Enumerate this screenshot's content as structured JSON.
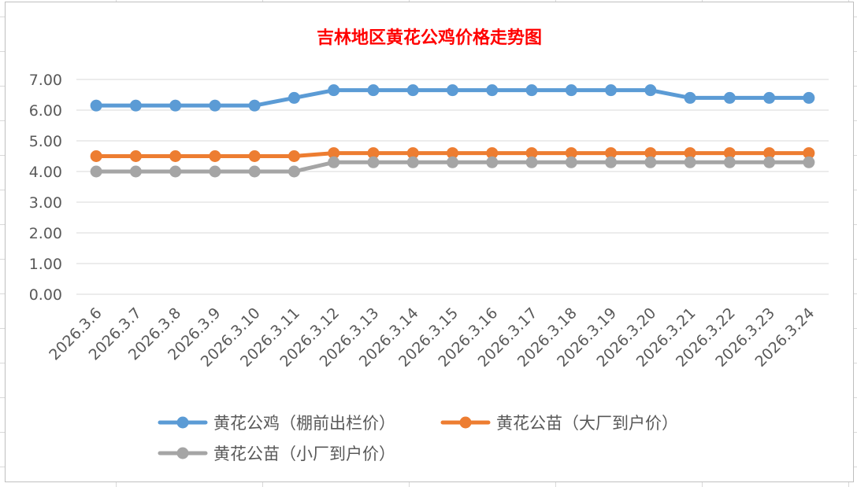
{
  "chart_data": {
    "type": "line",
    "title": "吉林地区黄花公鸡价格走势图",
    "xlabel": "",
    "ylabel": "",
    "ylim": [
      0,
      7
    ],
    "y_ticks": [
      "0.00",
      "1.00",
      "2.00",
      "3.00",
      "4.00",
      "5.00",
      "6.00",
      "7.00"
    ],
    "grid": true,
    "legend_position": "bottom",
    "categories": [
      "2026.3.6",
      "2026.3.7",
      "2026.3.8",
      "2026.3.9",
      "2026.3.10",
      "2026.3.11",
      "2026.3.12",
      "2026.3.13",
      "2026.3.14",
      "2026.3.15",
      "2026.3.16",
      "2026.3.17",
      "2026.3.18",
      "2026.3.19",
      "2026.3.20",
      "2026.3.21",
      "2026.3.22",
      "2026.3.23",
      "2026.3.24"
    ],
    "series": [
      {
        "name": "黄花公鸡（棚前出栏价）",
        "color": "#5b9bd5",
        "values": [
          6.15,
          6.15,
          6.15,
          6.15,
          6.15,
          6.4,
          6.65,
          6.65,
          6.65,
          6.65,
          6.65,
          6.65,
          6.65,
          6.65,
          6.65,
          6.4,
          6.4,
          6.4,
          6.4
        ]
      },
      {
        "name": "黄花公苗（大厂到户价）",
        "color": "#ed7d31",
        "values": [
          4.5,
          4.5,
          4.5,
          4.5,
          4.5,
          4.5,
          4.6,
          4.6,
          4.6,
          4.6,
          4.6,
          4.6,
          4.6,
          4.6,
          4.6,
          4.6,
          4.6,
          4.6,
          4.6
        ]
      },
      {
        "name": "黄花公苗（小厂到户价）",
        "color": "#a5a5a5",
        "values": [
          4.0,
          4.0,
          4.0,
          4.0,
          4.0,
          4.0,
          4.3,
          4.3,
          4.3,
          4.3,
          4.3,
          4.3,
          4.3,
          4.3,
          4.3,
          4.3,
          4.3,
          4.3,
          4.3
        ]
      }
    ]
  }
}
